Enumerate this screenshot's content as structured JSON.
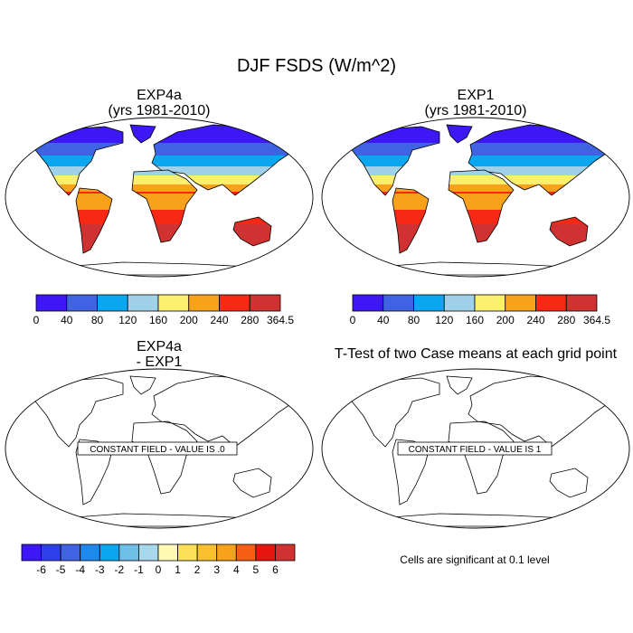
{
  "title": "DJF FSDS (W/m^2)",
  "panels": [
    {
      "title_line1": "EXP4a",
      "title_line2": "(yrs 1981-2010)"
    },
    {
      "title_line1": "EXP1",
      "title_line2": "(yrs 1981-2010)"
    },
    {
      "title_line1": "EXP4a",
      "title_line2": "- EXP1",
      "field_label": "CONSTANT FIELD - VALUE IS .0"
    },
    {
      "title_line1": "T-Test of two Case means at each grid point",
      "field_label": "CONSTANT FIELD - VALUE IS 1"
    }
  ],
  "footnote": "Cells are significant at 0.1 level",
  "chart_data": [
    {
      "type": "heatmap",
      "title": "EXP4a",
      "subtitle": "(yrs 1981-2010)",
      "colorbar": {
        "levels": [
          "0",
          "40",
          "80",
          "120",
          "160",
          "200",
          "240",
          "280",
          "364.5"
        ],
        "colors": [
          "#3d18f5",
          "#3f63e3",
          "#0aa7f0",
          "#9fd2ea",
          "#fbf06e",
          "#f7a21a",
          "#f72914",
          "#d03131"
        ]
      }
    },
    {
      "type": "heatmap",
      "title": "EXP1",
      "subtitle": "(yrs 1981-2010)",
      "colorbar": {
        "levels": [
          "0",
          "40",
          "80",
          "120",
          "160",
          "200",
          "240",
          "280",
          "364.5"
        ],
        "colors": [
          "#3d18f5",
          "#3f63e3",
          "#0aa7f0",
          "#9fd2ea",
          "#fbf06e",
          "#f7a21a",
          "#f72914",
          "#d03131"
        ]
      }
    },
    {
      "type": "heatmap",
      "title": "EXP4a",
      "subtitle": "- EXP1",
      "constant_value": 0,
      "colorbar": {
        "levels": [
          "-6",
          "-5",
          "-4",
          "-3",
          "-2",
          "-1",
          "0",
          "1",
          "2",
          "3",
          "4",
          "5",
          "6"
        ],
        "colors": [
          "#3d18f5",
          "#2f3fea",
          "#3f63e3",
          "#1f88ec",
          "#0aa7f0",
          "#6fbfe8",
          "#a9d8ec",
          "#fffbb4",
          "#fbe05a",
          "#f8c12d",
          "#f7a21a",
          "#f75f14",
          "#e4160f",
          "#d03131"
        ]
      }
    },
    {
      "type": "heatmap",
      "title": "T-Test of two Case means at each grid point",
      "constant_value": 1
    }
  ]
}
